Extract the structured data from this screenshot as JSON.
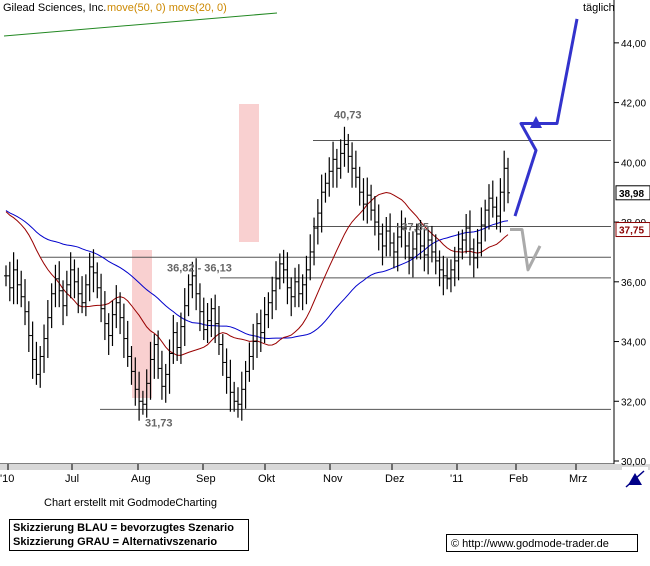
{
  "chart_data": {
    "type": "ohlc",
    "title": "Gilead Sciences, Inc.",
    "indicators_label": "move(50, 0) movs(20, 0)",
    "period_label": "täglich",
    "ylim": [
      29.9,
      45.1
    ],
    "y_ticks": [
      {
        "value": 44,
        "label": "44,00"
      },
      {
        "value": 42,
        "label": "42,00"
      },
      {
        "value": 40,
        "label": "40,00"
      },
      {
        "value": 38,
        "label": "38,00"
      },
      {
        "value": 36,
        "label": "36,00"
      },
      {
        "value": 34,
        "label": "34,00"
      },
      {
        "value": 32,
        "label": "32,00"
      },
      {
        "value": 30,
        "label": "30,00"
      }
    ],
    "x_ticks": [
      "'10",
      "Jul",
      "Aug",
      "Sep",
      "Okt",
      "Nov",
      "Dez",
      "'11",
      "Feb",
      "Mrz"
    ],
    "price_badges": [
      {
        "value": 38.98,
        "label": "38,98",
        "color": "#000000"
      },
      {
        "value": 37.75,
        "label": "37,75",
        "color": "#8b0000"
      }
    ],
    "horizontal_levels": [
      40.73,
      37.85,
      36.82,
      36.13,
      31.73
    ],
    "annotations": [
      {
        "text": "40,73",
        "value": 40.73
      },
      {
        "text": "~37,85",
        "value": 37.85
      },
      {
        "text": "36,82 - 36,13",
        "value": 36.82
      },
      {
        "text": "31,73",
        "value": 31.73
      }
    ],
    "highlight_zones": [
      {
        "from": "Aug",
        "to": "Aug"
      },
      {
        "from": "Okt",
        "to": "Okt"
      }
    ],
    "series": [
      {
        "name": "Price",
        "color": "#000000",
        "values": [
          36.2,
          35.8,
          36.4,
          35.9,
          35.5,
          35.0,
          34.2,
          33.4,
          32.9,
          33.5,
          34.1,
          34.8,
          35.6,
          36.1,
          35.7,
          35.2,
          35.9,
          36.4,
          36.0,
          35.6,
          35.3,
          35.9,
          36.5,
          36.3,
          35.8,
          35.1,
          34.6,
          34.2,
          34.9,
          35.3,
          34.8,
          34.1,
          33.5,
          33.0,
          32.4,
          32.0,
          31.9,
          32.6,
          33.4,
          33.9,
          33.1,
          32.5,
          32.9,
          33.6,
          34.3,
          33.8,
          34.5,
          35.2,
          35.9,
          36.2,
          35.6,
          35.0,
          34.4,
          34.7,
          35.1,
          34.6,
          33.9,
          33.3,
          32.8,
          32.3,
          32.0,
          31.9,
          32.4,
          33.0,
          33.5,
          34.0,
          34.6,
          34.3,
          34.9,
          35.3,
          35.7,
          36.1,
          36.6,
          36.4,
          35.8,
          35.5,
          36.0,
          35.6,
          35.9,
          36.4,
          37.0,
          37.8,
          38.3,
          39.0,
          39.3,
          39.7,
          40.1,
          39.8,
          40.3,
          40.6,
          40.2,
          39.8,
          39.5,
          39.0,
          38.6,
          38.9,
          38.4,
          38.0,
          37.6,
          37.2,
          37.7,
          37.3,
          37.0,
          37.5,
          37.8,
          37.2,
          36.8,
          37.1,
          37.6,
          37.2,
          36.9,
          37.4,
          37.0,
          36.7,
          36.4,
          36.2,
          36.1,
          36.4,
          36.7,
          37.1,
          37.4,
          37.8,
          37.1,
          36.8,
          37.3,
          37.9,
          38.4,
          38.8,
          38.5,
          38.2,
          39.0,
          39.8,
          38.98
        ],
        "x_range": [
          "'10",
          "Feb"
        ]
      },
      {
        "name": "move(50, 0)",
        "color": "#0000cc"
      },
      {
        "name": "movs(20, 0)",
        "color": "#990000"
      }
    ],
    "scenarios": [
      {
        "name": "BLAU",
        "color": "#3333cc",
        "points": [
          [
            38.2,
            "Feb"
          ],
          [
            40.4,
            "Feb"
          ],
          [
            41.3,
            "Feb"
          ],
          [
            41.3,
            "Mrz"
          ],
          [
            44.8,
            "Mrz"
          ]
        ]
      },
      {
        "name": "GRAU",
        "color": "#aaaaaa",
        "points": [
          [
            37.75,
            "Feb"
          ],
          [
            37.75,
            "Feb"
          ],
          [
            36.4,
            "Feb"
          ],
          [
            37.2,
            "Mrz"
          ]
        ]
      }
    ]
  },
  "legend": {
    "blue_text": "Skizzierung BLAU = bevorzugtes Szenario",
    "gray_text": "Skizzierung GRAU = Alternativszenario"
  },
  "credit": "Chart erstellt mit GodmodeCharting",
  "url": "© http://www.godmode-trader.de"
}
